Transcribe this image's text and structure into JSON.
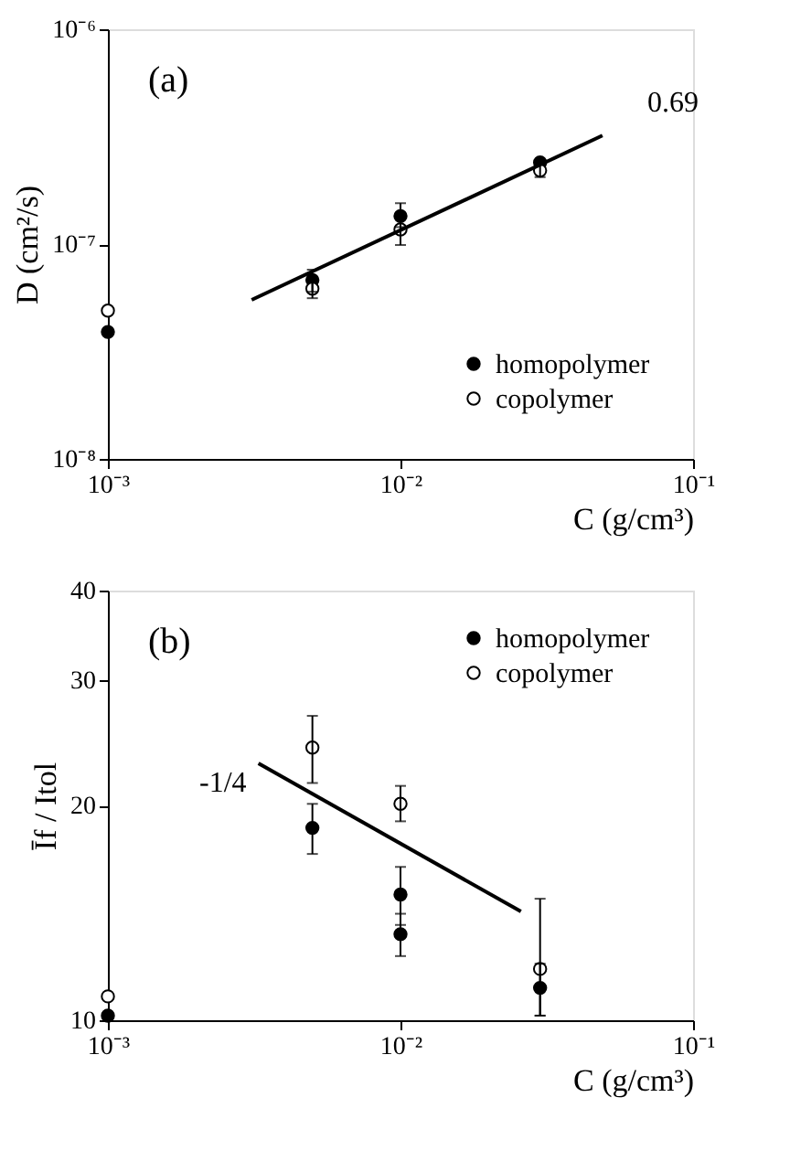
{
  "chart_data": [
    {
      "type": "scatter",
      "xlabel": "C (g/cm³)",
      "ylabel": "D (cm²/s)",
      "log": "xy",
      "grid": false,
      "legend": "bottom right",
      "marker": "circle",
      "xlim": [
        0.001,
        0.1
      ],
      "xticks": [
        {
          "value": 0.001,
          "label": "10⁻³"
        },
        {
          "value": 0.01,
          "label": "10⁻²"
        },
        {
          "value": 0.1,
          "label": "10⁻¹"
        }
      ],
      "ylim": [
        1e-08,
        1e-06
      ],
      "yticks": [
        {
          "value": 1e-08,
          "label": "10⁻⁸"
        },
        {
          "value": 1e-07,
          "label": "10⁻⁷"
        },
        {
          "value": 1e-06,
          "label": "10⁻⁶"
        }
      ],
      "annotations": [
        "(a)",
        "0.69"
      ],
      "series": [
        {
          "name": "homopolymer",
          "color": "#000000",
          "x": [
            0.001,
            0.005,
            0.01,
            0.03
          ],
          "values": [
            3.9e-08,
            6.8e-08,
            1.35e-07,
            2.4e-07
          ],
          "errors": [
            null,
            [
              6e-08,
              7.6e-08
            ],
            [
              1.2e-07,
              1.55e-07
            ],
            null
          ]
        },
        {
          "name": "copolymer",
          "color": "#ffffff",
          "x": [
            0.001,
            0.005,
            0.01,
            0.03
          ],
          "values": [
            4.9e-08,
            6.2e-08,
            1.17e-07,
            2.2e-07
          ],
          "errors": [
            null,
            [
              5.6e-08,
              6.8e-08
            ],
            [
              9.9e-08,
              1.35e-07
            ],
            [
              2.05e-07,
              2.35e-07
            ]
          ]
        },
        {
          "type": "line",
          "color": "#000000",
          "marker": "none",
          "line_style": "solid",
          "x": [
            0.0031,
            0.049
          ],
          "values": [
            5.5e-08,
            3.2e-07
          ]
        }
      ]
    },
    {
      "type": "scatter",
      "xlabel": "C (g/cm³)",
      "ylabel": "Īf / Itol",
      "log": "xy",
      "grid": false,
      "legend": "top right",
      "marker": "circle",
      "xlim": [
        0.001,
        0.1
      ],
      "xticks": [
        {
          "value": 0.001,
          "label": "10⁻³"
        },
        {
          "value": 0.01,
          "label": "10⁻²"
        },
        {
          "value": 0.1,
          "label": "10⁻¹"
        }
      ],
      "ylim": [
        10,
        40
      ],
      "yticks": [
        10,
        20,
        30,
        40
      ],
      "annotations": [
        "(b)",
        "-1/4"
      ],
      "series": [
        {
          "name": "homopolymer",
          "color": "#000000",
          "x": [
            0.001,
            0.005,
            0.01,
            0.01,
            0.03
          ],
          "values": [
            10.15,
            18.6,
            15.0,
            13.2,
            11.1
          ],
          "errors": [
            null,
            [
              17.1,
              20.1
            ],
            [
              13.6,
              16.4
            ],
            [
              12.3,
              14.1
            ],
            [
              10.15,
              12.0
            ]
          ]
        },
        {
          "name": "copolymer",
          "color": "#ffffff",
          "x": [
            0.001,
            0.005,
            0.01,
            0.03
          ],
          "values": [
            10.8,
            24.1,
            20.1,
            11.8
          ],
          "errors": [
            null,
            [
              21.5,
              26.7
            ],
            [
              19.0,
              21.3
            ],
            [
              10.15,
              14.8
            ]
          ]
        },
        {
          "type": "line",
          "color": "#000000",
          "marker": "none",
          "line_style": "solid",
          "x": [
            0.00327,
            0.0258
          ],
          "values": [
            22.9,
            14.2
          ]
        }
      ]
    }
  ]
}
